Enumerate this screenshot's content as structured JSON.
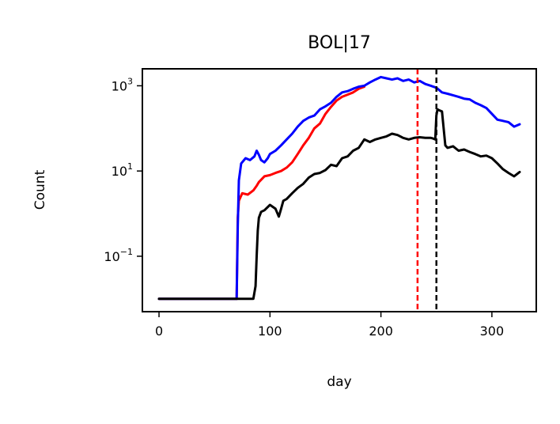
{
  "chart_data": {
    "type": "line",
    "title": "BOL|17",
    "xlabel": "day",
    "ylabel": "Count",
    "yscale": "log",
    "xlim": [
      -15,
      340
    ],
    "ylim": [
      0.005,
      2500
    ],
    "xticks": [
      {
        "value": 0,
        "label": "0"
      },
      {
        "value": 100,
        "label": "100"
      },
      {
        "value": 200,
        "label": "200"
      },
      {
        "value": 300,
        "label": "300"
      }
    ],
    "yticks": [
      {
        "value": 0.1,
        "base": "10",
        "exp": "−1"
      },
      {
        "value": 10,
        "base": "10",
        "exp": "1"
      },
      {
        "value": 1000,
        "base": "10",
        "exp": "3"
      }
    ],
    "grid": false,
    "legend": "none",
    "series": [
      {
        "color": "#ff0000",
        "x": [
          0,
          60,
          70,
          71,
          72,
          75,
          80,
          85,
          88,
          90,
          95,
          100,
          105,
          110,
          115,
          120,
          125,
          130,
          135,
          140,
          145,
          150,
          155,
          160,
          165,
          170,
          175,
          180,
          185
        ],
        "y": [
          0.01,
          0.01,
          0.01,
          0.8,
          2.0,
          3.0,
          2.8,
          3.5,
          4.5,
          5.5,
          7.5,
          8.0,
          9.0,
          10.0,
          12.0,
          16.0,
          25.0,
          40.0,
          60.0,
          100.0,
          130.0,
          220.0,
          320.0,
          450.0,
          550.0,
          620.0,
          700.0,
          850.0,
          950.0
        ]
      },
      {
        "color": "#0000ff",
        "x": [
          0,
          60,
          70,
          71,
          72,
          74,
          78,
          82,
          86,
          88,
          90,
          92,
          95,
          98,
          100,
          105,
          110,
          115,
          120,
          125,
          130,
          135,
          140,
          145,
          150,
          155,
          160,
          165,
          170,
          175,
          180,
          185,
          190,
          195,
          200,
          205,
          210,
          215,
          220,
          225,
          230,
          235,
          240,
          245,
          250,
          255,
          260,
          265,
          270,
          275,
          280,
          285,
          290,
          295,
          300,
          305,
          310,
          315,
          320,
          325
        ],
        "y": [
          0.01,
          0.01,
          0.01,
          0.5,
          6.0,
          15.0,
          20.0,
          18.0,
          22.0,
          30.0,
          24.0,
          18.0,
          16.0,
          20.0,
          25.0,
          30.0,
          40.0,
          55.0,
          75.0,
          110.0,
          150.0,
          180.0,
          200.0,
          280.0,
          330.0,
          400.0,
          550.0,
          700.0,
          750.0,
          850.0,
          950.0,
          1000.0,
          1200.0,
          1400.0,
          1600.0,
          1500.0,
          1400.0,
          1500.0,
          1300.0,
          1400.0,
          1200.0,
          1300.0,
          1100.0,
          1000.0,
          900.0,
          700.0,
          650.0,
          600.0,
          550.0,
          500.0,
          480.0,
          400.0,
          350.0,
          300.0,
          220.0,
          160.0,
          150.0,
          140.0,
          110.0,
          125.0
        ]
      },
      {
        "color": "#000000",
        "x": [
          0,
          85,
          87,
          88,
          89,
          90,
          92,
          95,
          100,
          105,
          108,
          110,
          112,
          115,
          120,
          125,
          130,
          135,
          140,
          145,
          150,
          155,
          160,
          165,
          170,
          175,
          180,
          185,
          190,
          195,
          200,
          205,
          210,
          215,
          220,
          225,
          230,
          235,
          240,
          245,
          247,
          249,
          250,
          251,
          252,
          255,
          258,
          260,
          265,
          270,
          275,
          280,
          285,
          290,
          295,
          300,
          305,
          310,
          315,
          320,
          325
        ],
        "y": [
          0.01,
          0.01,
          0.02,
          0.1,
          0.4,
          0.8,
          1.1,
          1.2,
          1.6,
          1.3,
          0.85,
          1.3,
          2.0,
          2.2,
          3.0,
          4.0,
          5.0,
          7.0,
          8.5,
          9.0,
          10.5,
          14.0,
          13.0,
          20.0,
          22.0,
          30.0,
          35.0,
          55.0,
          48.0,
          55.0,
          60.0,
          65.0,
          75.0,
          70.0,
          60.0,
          55.0,
          60.0,
          62.0,
          60.0,
          60.0,
          58.0,
          55.0,
          200.0,
          280.0,
          270.0,
          250.0,
          40.0,
          35.0,
          38.0,
          30.0,
          32.0,
          28.0,
          25.0,
          22.0,
          23.0,
          20.0,
          15.0,
          11.0,
          9.0,
          7.5,
          9.5
        ]
      }
    ],
    "vlines": [
      {
        "x": 233,
        "color": "#ff0000",
        "style": "dashed"
      },
      {
        "x": 250,
        "color": "#000000",
        "style": "dashed"
      }
    ]
  }
}
